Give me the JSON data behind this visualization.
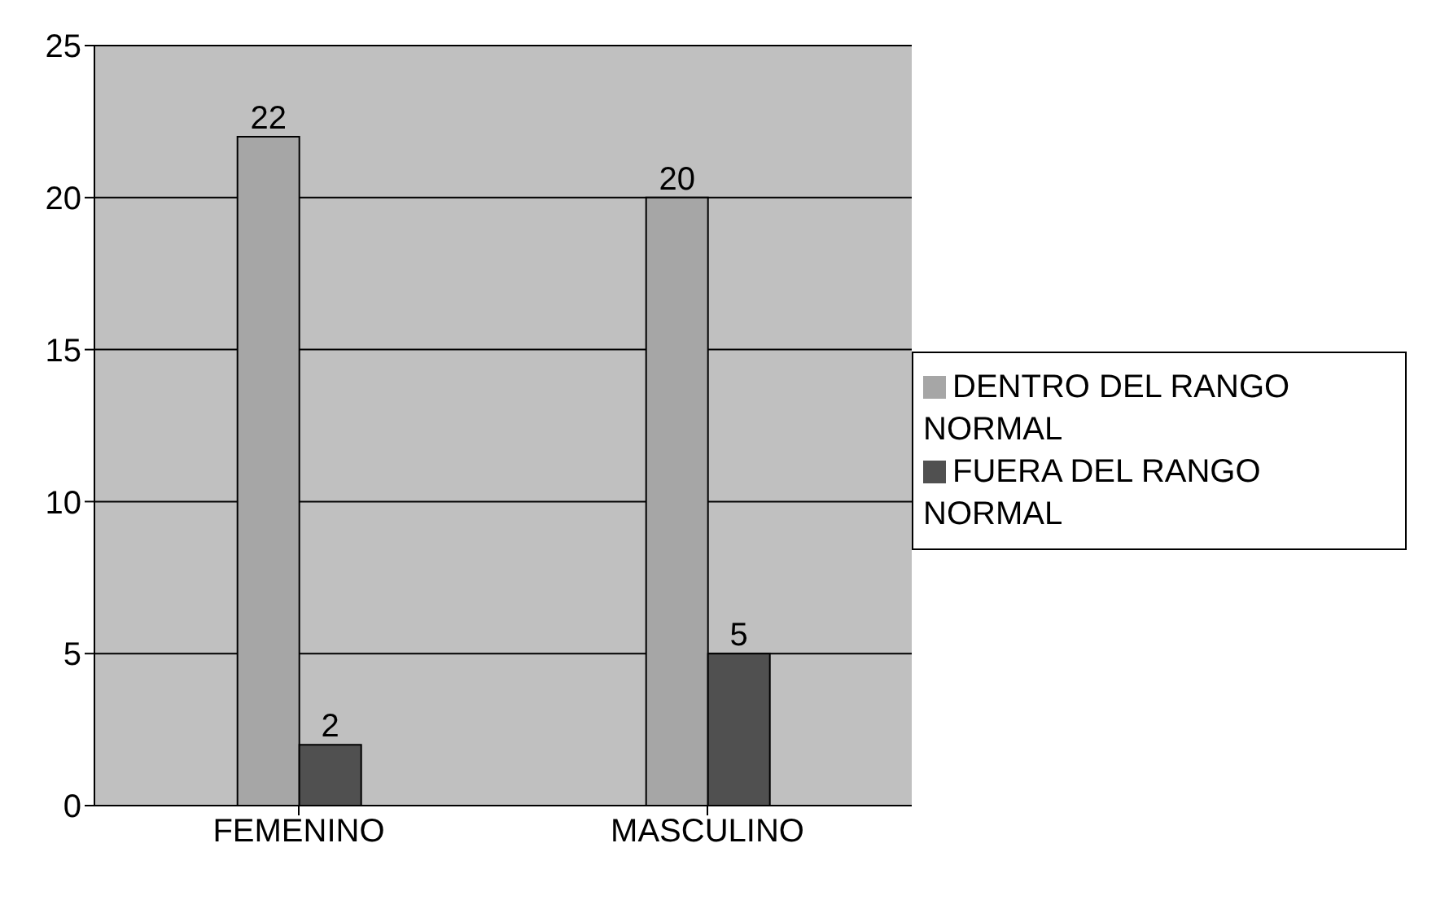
{
  "chart_data": {
    "type": "bar",
    "categories": [
      "FEMENINO",
      "MASCULINO"
    ],
    "series": [
      {
        "name": "DENTRO DEL RANGO NORMAL",
        "color": "#a6a6a6",
        "values": [
          22,
          20
        ]
      },
      {
        "name": "FUERA DEL RANGO NORMAL",
        "color": "#505050",
        "values": [
          2,
          5
        ]
      }
    ],
    "ylim": [
      0,
      25
    ],
    "yticks": [
      0,
      5,
      10,
      15,
      20,
      25
    ],
    "grid": "y",
    "legend": "right",
    "data_labels": true
  }
}
